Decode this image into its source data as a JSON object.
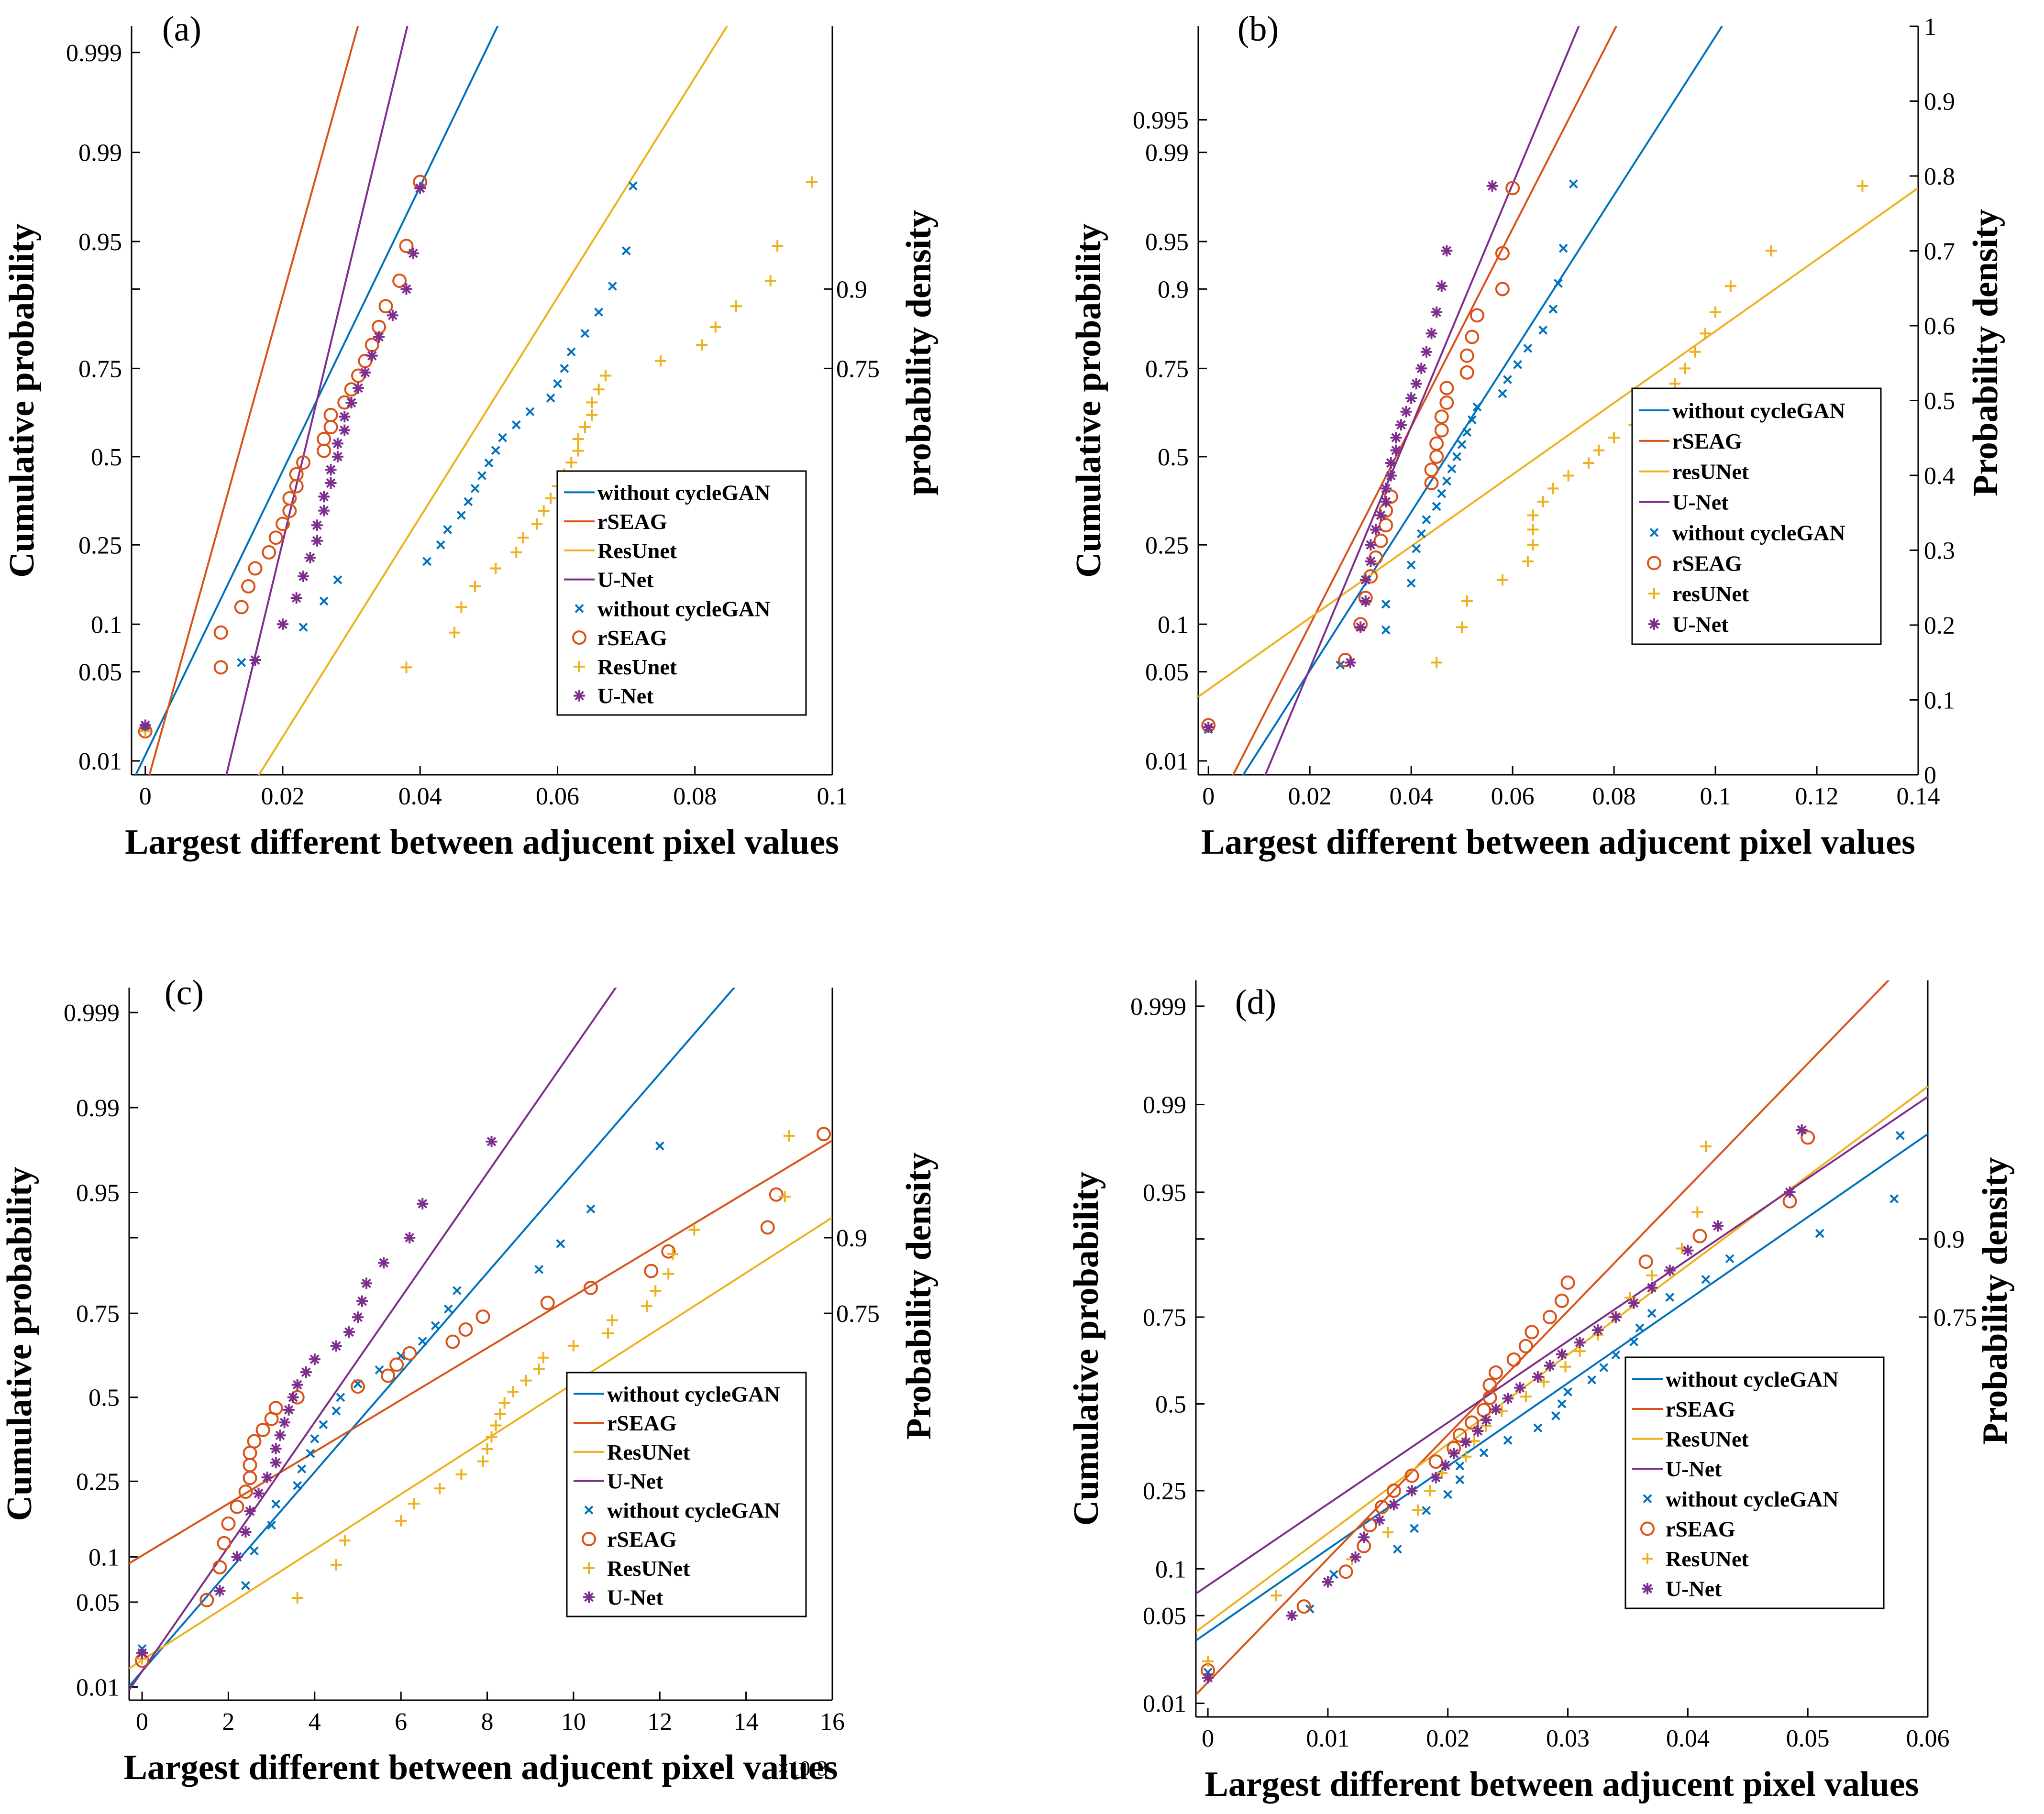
{
  "chart_data": [
    {
      "panel": "(a)",
      "type": "scatter",
      "xlabel": "Largest different between adjucent pixel values",
      "ylabel": "Cumulative probability",
      "ylabel_right": "probability density",
      "xlim": [
        -0.002,
        0.1
      ],
      "xticks": [
        0,
        0.02,
        0.04,
        0.06,
        0.08,
        0.1
      ],
      "xticklabels": [
        "0",
        "0.02",
        "0.04",
        "0.06",
        "0.08",
        "0.1"
      ],
      "x_exponent": "",
      "ylim": [
        0.0075,
        0.9995
      ],
      "yticks": [
        0.01,
        0.05,
        0.1,
        0.25,
        0.5,
        0.75,
        0.9,
        0.95,
        0.99,
        0.999
      ],
      "yticklabels": [
        "0.01",
        "0.05",
        "0.1",
        "0.25",
        "0.5",
        "0.75",
        "",
        "0.95",
        "0.99",
        "0.999"
      ],
      "right_ticks": [
        0.75,
        0.9
      ],
      "right_ticklabels": [
        "0.75",
        "0.9"
      ],
      "right_axis_top": true,
      "legend_position": "lower-right",
      "legend_lines": [
        "without cycleGAN",
        "rSEAG",
        "ResUnet",
        "U-Net"
      ],
      "legend_markers": [
        "without cycleGAN",
        "rSEAG",
        "ResUnet",
        "U-Net"
      ],
      "fits": [
        [
          0.021,
          0.0092
        ],
        [
          0.0135,
          0.0053
        ],
        [
          0.0455,
          0.0119
        ],
        [
          0.023,
          0.0046
        ]
      ],
      "series": [
        {
          "name": "without cycleGAN",
          "marker": "x",
          "color": "#0072BD",
          "x": [
            0,
            0.014,
            0.023,
            0.026,
            0.028,
            0.041,
            0.043,
            0.044,
            0.046,
            0.047,
            0.048,
            0.049,
            0.05,
            0.051,
            0.052,
            0.054,
            0.056,
            0.059,
            0.06,
            0.061,
            0.062,
            0.064,
            0.066,
            0.068,
            0.07,
            0.071
          ]
        },
        {
          "name": "rSEAG",
          "marker": "o",
          "color": "#D95319",
          "x": [
            0,
            0.011,
            0.011,
            0.014,
            0.015,
            0.016,
            0.018,
            0.019,
            0.02,
            0.021,
            0.021,
            0.022,
            0.022,
            0.023,
            0.026,
            0.026,
            0.027,
            0.027,
            0.029,
            0.03,
            0.031,
            0.032,
            0.033,
            0.034,
            0.035,
            0.037,
            0.038,
            0.04
          ]
        },
        {
          "name": "ResUnet",
          "marker": "+",
          "color": "#EDB120",
          "x": [
            0,
            0.038,
            0.045,
            0.046,
            0.048,
            0.051,
            0.054,
            0.055,
            0.057,
            0.058,
            0.059,
            0.06,
            0.061,
            0.062,
            0.063,
            0.063,
            0.064,
            0.065,
            0.065,
            0.066,
            0.067,
            0.075,
            0.081,
            0.083,
            0.086,
            0.091,
            0.092,
            0.097
          ]
        },
        {
          "name": "U-Net",
          "marker": "*",
          "color": "#7E2F8E",
          "x": [
            0,
            0.016,
            0.02,
            0.022,
            0.023,
            0.024,
            0.025,
            0.025,
            0.026,
            0.026,
            0.027,
            0.027,
            0.028,
            0.028,
            0.029,
            0.029,
            0.03,
            0.031,
            0.032,
            0.033,
            0.034,
            0.036,
            0.038,
            0.039,
            0.04
          ]
        }
      ]
    },
    {
      "panel": "(b)",
      "type": "scatter",
      "xlabel": "Largest different between adjucent pixel values",
      "ylabel": "Cumulative probability",
      "ylabel_right": "Probability density",
      "xlim": [
        -0.002,
        0.14
      ],
      "xticks": [
        0,
        0.02,
        0.04,
        0.06,
        0.08,
        0.1,
        0.12,
        0.14
      ],
      "xticklabels": [
        "0",
        "0.02",
        "0.04",
        "0.06",
        "0.08",
        "0.1",
        "0.12",
        "0.14"
      ],
      "x_exponent": "",
      "ylim": [
        0.0075,
        0.9995
      ],
      "yticks": [
        0.01,
        0.05,
        0.1,
        0.25,
        0.5,
        0.75,
        0.9,
        0.95,
        0.99,
        0.995
      ],
      "yticklabels": [
        "0.01",
        "0.05",
        "0.1",
        "0.25",
        "0.5",
        "0.75",
        "0.9",
        "0.95",
        "0.99",
        "0.995"
      ],
      "right_ticks": [
        0,
        0.1,
        0.2,
        0.3,
        0.4,
        0.5,
        0.6,
        0.7,
        0.8,
        0.9,
        1
      ],
      "right_ticklabels": [
        "0",
        "0.1",
        "0.2",
        "0.3",
        "0.4",
        "0.5",
        "0.6",
        "0.7",
        "0.8",
        "0.9",
        "1"
      ],
      "right_axis_top": false,
      "legend_position": "right-middle",
      "legend_lines": [
        "without cycleGAN",
        "rSEAG",
        "resUNet",
        "U-Net"
      ],
      "legend_markers": [
        "without cycleGAN",
        "rSEAG",
        "resUNet",
        "U-Net"
      ],
      "fits": [
        [
          0.047,
          0.0165
        ],
        [
          0.037,
          0.0132
        ],
        [
          0.065,
          0.0365
        ],
        [
          0.0375,
          0.0108
        ]
      ],
      "series": [
        {
          "name": "without cycleGAN",
          "marker": "x",
          "color": "#0072BD",
          "x": [
            0,
            0.026,
            0.035,
            0.035,
            0.04,
            0.04,
            0.041,
            0.042,
            0.043,
            0.045,
            0.046,
            0.047,
            0.048,
            0.049,
            0.05,
            0.051,
            0.052,
            0.053,
            0.058,
            0.059,
            0.061,
            0.063,
            0.066,
            0.068,
            0.069,
            0.07,
            0.072
          ]
        },
        {
          "name": "rSEAG",
          "marker": "o",
          "color": "#D95319",
          "x": [
            0,
            0.027,
            0.03,
            0.031,
            0.032,
            0.033,
            0.034,
            0.035,
            0.035,
            0.036,
            0.044,
            0.044,
            0.045,
            0.045,
            0.046,
            0.046,
            0.047,
            0.047,
            0.051,
            0.051,
            0.052,
            0.053,
            0.058,
            0.058,
            0.06
          ]
        },
        {
          "name": "resUNet",
          "marker": "+",
          "color": "#EDB120",
          "x": [
            0,
            0.045,
            0.05,
            0.051,
            0.058,
            0.063,
            0.064,
            0.064,
            0.064,
            0.066,
            0.068,
            0.071,
            0.075,
            0.077,
            0.08,
            0.084,
            0.086,
            0.089,
            0.092,
            0.094,
            0.096,
            0.098,
            0.1,
            0.103,
            0.111,
            0.129
          ]
        },
        {
          "name": "U-Net",
          "marker": "*",
          "color": "#7E2F8E",
          "x": [
            0,
            0.028,
            0.03,
            0.031,
            0.031,
            0.032,
            0.032,
            0.033,
            0.034,
            0.035,
            0.035,
            0.036,
            0.036,
            0.037,
            0.037,
            0.038,
            0.039,
            0.04,
            0.041,
            0.042,
            0.043,
            0.044,
            0.045,
            0.046,
            0.047,
            0.056
          ]
        }
      ]
    },
    {
      "panel": "(c)",
      "type": "scatter",
      "xlabel": "Largest different between adjucent pixel values",
      "ylabel": "Cumulative probability",
      "ylabel_right": "Probability density",
      "xlim": [
        -0.3,
        16
      ],
      "xticks": [
        0,
        2,
        4,
        6,
        8,
        10,
        12,
        14,
        16
      ],
      "xticklabels": [
        "0",
        "2",
        "4",
        "6",
        "8",
        "10",
        "12",
        "14",
        "16"
      ],
      "x_exponent": "×10-3",
      "ylim": [
        0.0075,
        0.9995
      ],
      "yticks": [
        0.01,
        0.05,
        0.1,
        0.25,
        0.5,
        0.75,
        0.9,
        0.95,
        0.99,
        0.999
      ],
      "yticklabels": [
        "0.01",
        "0.05",
        "0.1",
        "0.25",
        "0.5",
        "0.75",
        "",
        "0.95",
        "0.99",
        "0.999"
      ],
      "right_ticks": [
        0.75,
        0.9
      ],
      "right_ticklabels": [
        "0.75",
        "0.9"
      ],
      "right_axis_top": true,
      "legend_position": "lower-right",
      "legend_lines": [
        "without cycleGAN",
        "rSEAG",
        "ResUNet",
        "U-Net"
      ],
      "legend_markers": [
        "without cycleGAN",
        "rSEAG",
        "ResUNet",
        "U-Net"
      ],
      "fits": [
        [
          5.5,
          2.5
        ],
        [
          6.1,
          4.8
        ],
        [
          9.5,
          4.5
        ],
        [
          4.4,
          2.0
        ]
      ],
      "series": [
        {
          "name": "without cycleGAN",
          "marker": "x",
          "color": "#0072BD",
          "x": [
            0,
            2.4,
            2.6,
            3.0,
            3.1,
            3.6,
            3.7,
            3.9,
            4.0,
            4.2,
            4.5,
            4.6,
            5.0,
            5.5,
            6.0,
            6.5,
            6.8,
            7.1,
            7.3,
            9.2,
            9.7,
            10.4,
            12.0
          ]
        },
        {
          "name": "rSEAG",
          "marker": "o",
          "color": "#D95319",
          "x": [
            0,
            1.5,
            1.8,
            1.9,
            2.0,
            2.2,
            2.4,
            2.5,
            2.5,
            2.5,
            2.6,
            2.8,
            3.0,
            3.1,
            3.6,
            5.0,
            5.7,
            5.9,
            6.2,
            7.2,
            7.5,
            7.9,
            9.4,
            10.4,
            11.8,
            12.2,
            14.5,
            14.7,
            15.8
          ]
        },
        {
          "name": "ResUNet",
          "marker": "+",
          "color": "#EDB120",
          "x": [
            0,
            3.6,
            4.5,
            4.7,
            6.0,
            6.3,
            6.9,
            7.4,
            7.9,
            8.0,
            8.1,
            8.2,
            8.3,
            8.4,
            8.6,
            8.9,
            9.2,
            9.3,
            10.0,
            10.8,
            10.9,
            11.7,
            11.9,
            12.2,
            12.3,
            12.8,
            14.9,
            15.0
          ]
        },
        {
          "name": "U-Net",
          "marker": "*",
          "color": "#7E2F8E",
          "x": [
            0,
            1.8,
            2.2,
            2.4,
            2.5,
            2.7,
            2.9,
            3.1,
            3.1,
            3.2,
            3.3,
            3.4,
            3.5,
            3.6,
            3.8,
            4.0,
            4.5,
            4.8,
            5.0,
            5.1,
            5.2,
            5.6,
            6.2,
            6.5,
            8.1
          ]
        }
      ]
    },
    {
      "panel": "(d)",
      "type": "scatter",
      "xlabel": "Largest different between adjucent pixel values",
      "ylabel": "Cumulative probability",
      "ylabel_right": "Probability density",
      "xlim": [
        -0.001,
        0.06
      ],
      "xticks": [
        0,
        0.01,
        0.02,
        0.03,
        0.04,
        0.05,
        0.06
      ],
      "xticklabels": [
        "0",
        "0.01",
        "0.02",
        "0.03",
        "0.04",
        "0.05",
        "0.06"
      ],
      "x_exponent": "",
      "ylim": [
        0.0075,
        0.9995
      ],
      "yticks": [
        0.01,
        0.05,
        0.1,
        0.25,
        0.5,
        0.75,
        0.9,
        0.95,
        0.99,
        0.999
      ],
      "yticklabels": [
        "0.01",
        "0.05",
        "0.1",
        "0.25",
        "0.5",
        "0.75",
        "",
        "0.95",
        "0.99",
        "0.999"
      ],
      "right_ticks": [
        0.75,
        0.9
      ],
      "right_ticklabels": [
        "0.75",
        "0.9"
      ],
      "right_axis_top": true,
      "legend_position": "lower-right",
      "legend_lines": [
        "without cycleGAN",
        "rSEAG",
        "ResUNet",
        "U-Net"
      ],
      "legend_markers": [
        "without cycleGAN",
        "rSEAG",
        "ResUNet",
        "U-Net"
      ],
      "fits": [
        [
          0.0275,
          0.0155
        ],
        [
          0.0225,
          0.0104
        ],
        [
          0.0245,
          0.0144
        ],
        [
          0.0223,
          0.0158
        ]
      ],
      "series": [
        {
          "name": "without cycleGAN",
          "marker": "x",
          "color": "#0072BD",
          "x": [
            0,
            0.0085,
            0.0105,
            0.0158,
            0.0172,
            0.0182,
            0.02,
            0.021,
            0.021,
            0.023,
            0.025,
            0.0275,
            0.029,
            0.0295,
            0.03,
            0.032,
            0.033,
            0.034,
            0.0355,
            0.036,
            0.037,
            0.0385,
            0.0415,
            0.0435,
            0.051,
            0.0572,
            0.0577
          ]
        },
        {
          "name": "rSEAG",
          "marker": "o",
          "color": "#D95319",
          "x": [
            0,
            0.008,
            0.0115,
            0.013,
            0.0135,
            0.0145,
            0.0155,
            0.017,
            0.019,
            0.0205,
            0.021,
            0.022,
            0.023,
            0.0235,
            0.0235,
            0.024,
            0.0255,
            0.0265,
            0.027,
            0.0285,
            0.0295,
            0.03,
            0.0365,
            0.041,
            0.0485,
            0.05
          ]
        },
        {
          "name": "ResUNet",
          "marker": "+",
          "color": "#EDB120",
          "x": [
            0,
            0.0057,
            0.012,
            0.015,
            0.0175,
            0.0185,
            0.0195,
            0.0215,
            0.0222,
            0.0232,
            0.0245,
            0.0265,
            0.028,
            0.0298,
            0.031,
            0.0325,
            0.0338,
            0.0352,
            0.037,
            0.0395,
            0.0408,
            0.0415
          ]
        },
        {
          "name": "U-Net",
          "marker": "*",
          "color": "#7E2F8E",
          "x": [
            0,
            0.007,
            0.01,
            0.0123,
            0.013,
            0.0143,
            0.0155,
            0.017,
            0.019,
            0.0198,
            0.0205,
            0.0215,
            0.0225,
            0.0232,
            0.024,
            0.025,
            0.026,
            0.0275,
            0.0285,
            0.0295,
            0.031,
            0.0325,
            0.034,
            0.0355,
            0.037,
            0.0385,
            0.04,
            0.0425,
            0.0485,
            0.0495
          ]
        }
      ]
    }
  ]
}
